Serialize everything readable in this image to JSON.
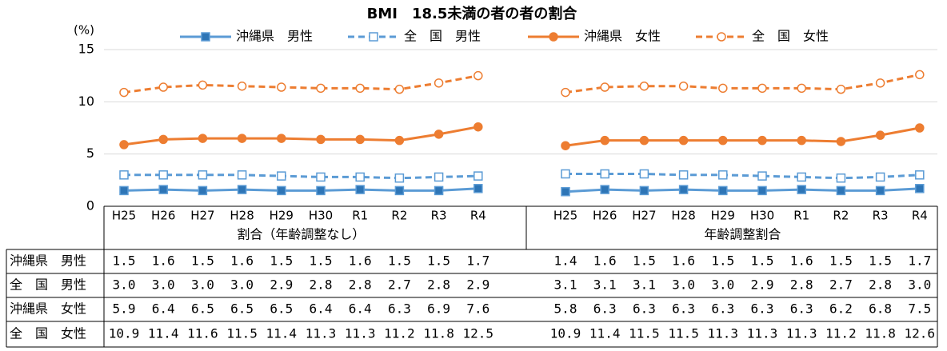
{
  "chart_data": {
    "type": "line",
    "title": "BMI　18.5未満の者の者の割合",
    "ylabel": "(%)",
    "ylim": [
      0,
      15
    ],
    "yticks": [
      0,
      5,
      10,
      15
    ],
    "grid": true,
    "series": [
      {
        "name": "沖縄県　男性",
        "color": "#5b9bd5",
        "marker_fill": "#2e75b6",
        "dashed": false,
        "marker": "square"
      },
      {
        "name": "全　国　男性",
        "color": "#5b9bd5",
        "marker_fill": "#ffffff",
        "dashed": true,
        "marker": "square"
      },
      {
        "name": "沖縄県　女性",
        "color": "#ed7d31",
        "marker_fill": "#ed7d31",
        "dashed": false,
        "marker": "circle"
      },
      {
        "name": "全　国　女性",
        "color": "#ed7d31",
        "marker_fill": "#ffffff",
        "dashed": true,
        "marker": "circle"
      }
    ],
    "panels": [
      {
        "xlabel": "割合（年齢調整なし）",
        "categories": [
          "H25",
          "H26",
          "H27",
          "H28",
          "H29",
          "H30",
          "R1",
          "R2",
          "R3",
          "R4"
        ],
        "series": [
          {
            "values": [
              1.5,
              1.6,
              1.5,
              1.6,
              1.5,
              1.5,
              1.6,
              1.5,
              1.5,
              1.7
            ],
            "value_labels": [
              "1.5",
              "1.6",
              "1.5",
              "1.6",
              "1.5",
              "1.5",
              "1.6",
              "1.5",
              "1.5",
              "1.7"
            ]
          },
          {
            "values": [
              3.0,
              3.0,
              3.0,
              3.0,
              2.9,
              2.8,
              2.8,
              2.7,
              2.8,
              2.9
            ],
            "value_labels": [
              "3.0",
              "3.0",
              "3.0",
              "3.0",
              "2.9",
              "2.8",
              "2.8",
              "2.7",
              "2.8",
              "2.9"
            ]
          },
          {
            "values": [
              5.9,
              6.4,
              6.5,
              6.5,
              6.5,
              6.4,
              6.4,
              6.3,
              6.9,
              7.6
            ],
            "value_labels": [
              "5.9",
              "6.4",
              "6.5",
              "6.5",
              "6.5",
              "6.4",
              "6.4",
              "6.3",
              "6.9",
              "7.6"
            ]
          },
          {
            "values": [
              10.9,
              11.4,
              11.6,
              11.5,
              11.4,
              11.3,
              11.3,
              11.2,
              11.8,
              12.5
            ],
            "value_labels": [
              "10.9",
              "11.4",
              "11.6",
              "11.5",
              "11.4",
              "11.3",
              "11.3",
              "11.2",
              "11.8",
              "12.5"
            ]
          }
        ]
      },
      {
        "xlabel": "年齢調整割合",
        "categories": [
          "H25",
          "H26",
          "H27",
          "H28",
          "H29",
          "H30",
          "R1",
          "R2",
          "R3",
          "R4"
        ],
        "series": [
          {
            "values": [
              1.4,
              1.6,
              1.5,
              1.6,
              1.5,
              1.5,
              1.6,
              1.5,
              1.5,
              1.7
            ],
            "value_labels": [
              "1.4",
              "1.6",
              "1.5",
              "1.6",
              "1.5",
              "1.5",
              "1.6",
              "1.5",
              "1.5",
              "1.7"
            ]
          },
          {
            "values": [
              3.1,
              3.1,
              3.1,
              3.0,
              3.0,
              2.9,
              2.8,
              2.7,
              2.8,
              3.0
            ],
            "value_labels": [
              "3.1",
              "3.1",
              "3.1",
              "3.0",
              "3.0",
              "2.9",
              "2.8",
              "2.7",
              "2.8",
              "3.0"
            ]
          },
          {
            "values": [
              5.8,
              6.3,
              6.3,
              6.3,
              6.3,
              6.3,
              6.3,
              6.2,
              6.8,
              7.5
            ],
            "value_labels": [
              "5.8",
              "6.3",
              "6.3",
              "6.3",
              "6.3",
              "6.3",
              "6.3",
              "6.2",
              "6.8",
              "7.5"
            ]
          },
          {
            "values": [
              10.9,
              11.4,
              11.5,
              11.5,
              11.3,
              11.3,
              11.3,
              11.2,
              11.8,
              12.6
            ],
            "value_labels": [
              "10.9",
              "11.4",
              "11.5",
              "11.5",
              "11.3",
              "11.3",
              "11.3",
              "11.2",
              "11.8",
              "12.6"
            ]
          }
        ]
      }
    ]
  }
}
